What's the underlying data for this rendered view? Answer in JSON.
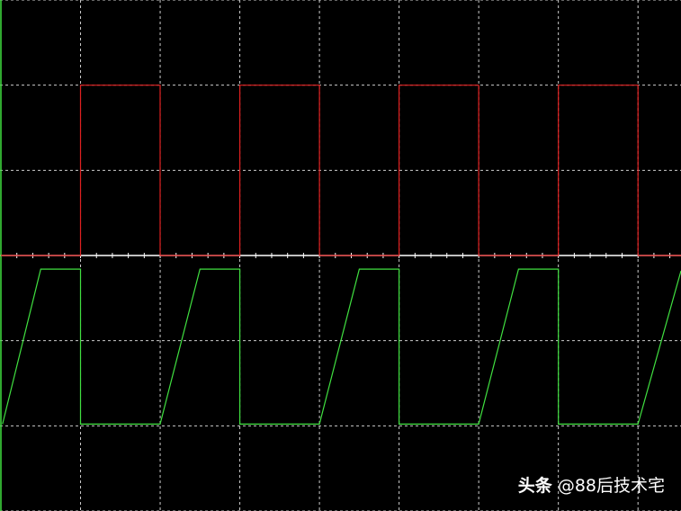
{
  "chart_data": {
    "type": "line",
    "title": "",
    "xlabel": "",
    "ylabel": "",
    "xlim": [
      0,
      8.54
    ],
    "ylim": [
      -3,
      3
    ],
    "grid": true,
    "grid_style": "dashed",
    "x_divisions": 1,
    "y_divisions": 1,
    "center_axis_minor_ticks_per_division": 5,
    "background_color": "#000000",
    "series": [
      {
        "color": "#e02020",
        "x": [
          0,
          1,
          1,
          2,
          2,
          3,
          3,
          4,
          4,
          5,
          5,
          6,
          6,
          7,
          7,
          8,
          8,
          8.54
        ],
        "y": [
          0,
          0,
          2,
          2,
          0,
          0,
          2,
          2,
          0,
          0,
          2,
          2,
          0,
          0,
          2,
          2,
          0,
          0
        ]
      },
      {
        "color": "#40e040",
        "x": [
          0.02,
          0.5,
          1,
          1,
          2,
          2.5,
          3,
          3,
          4,
          4.5,
          5,
          5,
          6,
          6.5,
          7,
          7,
          8,
          8.54
        ],
        "y": [
          -1.98,
          -0.16,
          -0.16,
          -1.98,
          -1.98,
          -0.16,
          -0.16,
          -1.98,
          -1.98,
          -0.16,
          -0.16,
          -1.98,
          -1.98,
          -0.16,
          -0.16,
          -1.98,
          -1.98,
          -0.18
        ]
      }
    ]
  },
  "watermark": {
    "brand": "头条",
    "handle": "@88后技术宅"
  }
}
